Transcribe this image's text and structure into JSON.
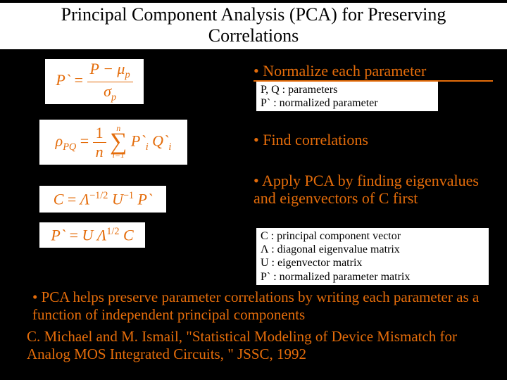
{
  "title": "Principal Component Analysis (PCA) for Preserving Correlations",
  "colors": {
    "background": "#000000",
    "panel": "#ffffff",
    "accent": "#e46c0a",
    "text_black": "#000000"
  },
  "typography": {
    "title_fontsize": 26,
    "step_fontsize": 22,
    "note_fontsize": 16,
    "formula_fontsize": 22,
    "font_family": "Times New Roman"
  },
  "steps": {
    "s1": "• Normalize each parameter",
    "s2": "• Find correlations",
    "s3": "• Apply PCA by finding eigenvalues and eigenvectors of C first"
  },
  "notes": {
    "n1_line1": "P, Q : parameters",
    "n1_line2": "P` : normalized parameter",
    "n2_line1": "C : principal component vector",
    "n2_line2": "Λ : diagonal eigenvalue matrix",
    "n2_line3": "U : eigenvector matrix",
    "n2_line4": "P` : normalized parameter matrix"
  },
  "formulas": {
    "eq1": {
      "lhs": "P`",
      "num": "P − μ",
      "num_sub": "p",
      "den": "σ",
      "den_sub": "p"
    },
    "eq2": {
      "lhs": "ρ",
      "lhs_sub": "PQ",
      "frac_num": "1",
      "frac_den": "n",
      "sum_top": "n",
      "sum_bot": "i=1",
      "term": "P`",
      "term_sub": "i",
      "term2": "Q`",
      "term2_sub": "i"
    },
    "eq3": {
      "lhs": "C",
      "rhs1": "Λ",
      "exp1": "−1/2",
      "rhs2": "U",
      "exp2": "−1",
      "rhs3": "P`"
    },
    "eq4": {
      "lhs": "P`",
      "rhs1": "U",
      "rhs2": "Λ",
      "exp2": "1/2",
      "rhs3": "C"
    }
  },
  "bottom": "• PCA helps preserve parameter correlations by writing each parameter as a function of independent principal components",
  "citation": "C. Michael and M. Ismail, \"Statistical Modeling of Device Mismatch for Analog MOS Integrated Circuits, \" JSSC, 1992"
}
